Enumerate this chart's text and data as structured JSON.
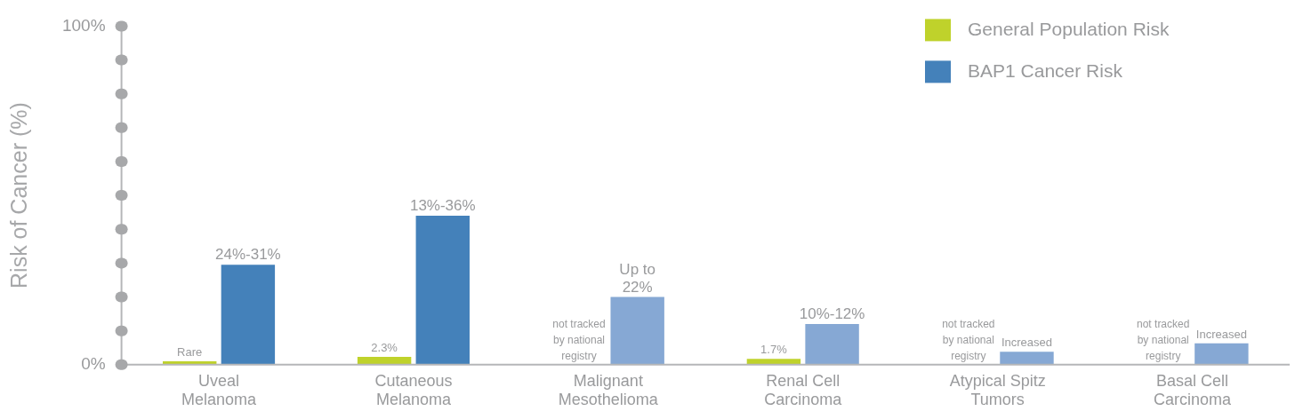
{
  "chart_data": {
    "type": "bar",
    "ylabel": "Risk of Cancer (%)",
    "categories": [
      "Uveal Melanoma",
      "Cutaneous Melanoma",
      "Malignant Mesothelioma",
      "Renal Cell Carcinoma",
      "Atypical Spitz Tumors",
      "Basal Cell Carcinoma"
    ],
    "series": [
      {
        "name": "General Population Risk",
        "color": "#bfd22b",
        "values": [
          1.0,
          2.3,
          null,
          1.7,
          null,
          null
        ],
        "value_labels": [
          "Rare",
          "2.3%",
          "not tracked by national registry",
          "1.7%",
          "not tracked by national registry",
          "not tracked by national registry"
        ]
      },
      {
        "name": "BAP1 Cancer Risk",
        "color": "#4481ba",
        "colors": [
          "#4481ba",
          "#4481ba",
          "#86a8d4",
          "#86a8d4",
          "#86a8d4",
          "#86a8d4"
        ],
        "values": [
          29.5,
          44,
          20,
          12,
          3.8,
          6.3
        ],
        "value_labels": [
          null,
          null,
          "Up to 22%",
          null,
          "Increased",
          "Increased"
        ]
      }
    ],
    "annotations": [
      {
        "text": "24%-31%",
        "x": "Uveal Melanoma",
        "y": 29.5
      },
      {
        "text": "13%-36%",
        "x": "Cutaneous Melanoma",
        "y": 44
      },
      {
        "text": "10%-12%",
        "x": "Renal Cell Carcinoma",
        "y": 12
      }
    ],
    "ylim": [
      0,
      100
    ],
    "yticks": [
      {
        "value": 0,
        "label": "0%"
      },
      {
        "value": 10,
        "label": null
      },
      {
        "value": 20,
        "label": null
      },
      {
        "value": 30,
        "label": null
      },
      {
        "value": 40,
        "label": null
      },
      {
        "value": 50,
        "label": null
      },
      {
        "value": 60,
        "label": null
      },
      {
        "value": 70,
        "label": null
      },
      {
        "value": 80,
        "label": null
      },
      {
        "value": 90,
        "label": null
      },
      {
        "value": 100,
        "label": "100%"
      }
    ],
    "grid": false,
    "legend": "top right"
  }
}
